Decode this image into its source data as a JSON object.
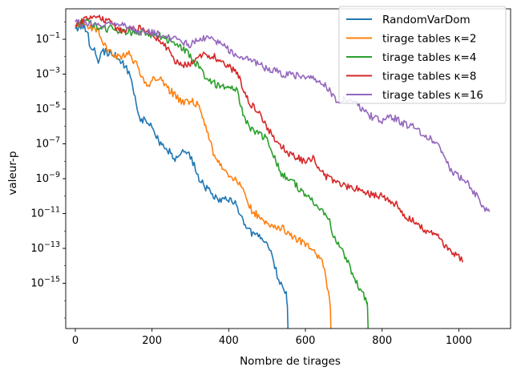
{
  "chart_data": {
    "type": "line",
    "title": "",
    "xlabel": "Nombre de tirages",
    "ylabel": "valeur-p",
    "xlim": [
      -25,
      1135
    ],
    "ylim_log10": [
      -17.6,
      0.75
    ],
    "y_scale": "log",
    "x_ticks": [
      0,
      200,
      400,
      600,
      800,
      1000
    ],
    "x_tick_labels": [
      "0",
      "200",
      "400",
      "600",
      "800",
      "1000"
    ],
    "y_tick_exponents": [
      -15,
      -13,
      -11,
      -9,
      -7,
      -5,
      -3,
      -1
    ],
    "y_tick_labels": [
      {
        "base": "10",
        "exp": "−15"
      },
      {
        "base": "10",
        "exp": "−13"
      },
      {
        "base": "10",
        "exp": "−11"
      },
      {
        "base": "10",
        "exp": "−9"
      },
      {
        "base": "10",
        "exp": "−7"
      },
      {
        "base": "10",
        "exp": "−5"
      },
      {
        "base": "10",
        "exp": "−3"
      },
      {
        "base": "10",
        "exp": "−1"
      }
    ],
    "grid": false,
    "legend_position": "top-right",
    "series": [
      {
        "name": "RandomVarDom",
        "color": "#1f77b4",
        "x": [
          0,
          20,
          30,
          40,
          50,
          60,
          70,
          90,
          110,
          130,
          140,
          150,
          170,
          190,
          200,
          220,
          240,
          260,
          270,
          280,
          290,
          300,
          310,
          320,
          340,
          360,
          380,
          400,
          420,
          440,
          460,
          480,
          500,
          510,
          520,
          530,
          540,
          550,
          553
        ],
        "log10_y": [
          -0.4,
          -0.2,
          -0.5,
          -1.5,
          -1.7,
          -2.3,
          -1.7,
          -1.8,
          -2.0,
          -2.6,
          -2.9,
          -3.8,
          -5.6,
          -5.7,
          -6.0,
          -7.0,
          -7.3,
          -7.9,
          -7.7,
          -7.5,
          -7.5,
          -7.7,
          -8.2,
          -8.9,
          -9.5,
          -10.0,
          -10.2,
          -10.2,
          -10.5,
          -11.5,
          -12.1,
          -12.2,
          -12.8,
          -13.0,
          -14.0,
          -14.8,
          -15.3,
          -15.6,
          -16.3
        ]
      },
      {
        "name": "tirage tables κ=2",
        "color": "#ff7f0e",
        "x": [
          0,
          20,
          40,
          60,
          70,
          80,
          90,
          120,
          140,
          160,
          180,
          190,
          200,
          220,
          240,
          260,
          270,
          280,
          290,
          300,
          320,
          340,
          360,
          380,
          400,
          420,
          440,
          460,
          480,
          500,
          520,
          540,
          560,
          580,
          600,
          610,
          620,
          640,
          650,
          660,
          665
        ],
        "log10_y": [
          -0.3,
          0.0,
          -0.3,
          -0.5,
          -1.0,
          -1.5,
          -1.8,
          -2.0,
          -1.8,
          -2.5,
          -3.5,
          -3.8,
          -3.2,
          -3.3,
          -3.8,
          -4.2,
          -4.5,
          -4.6,
          -4.6,
          -4.5,
          -4.8,
          -6.0,
          -7.5,
          -8.2,
          -8.8,
          -9.0,
          -9.7,
          -10.8,
          -11.2,
          -11.5,
          -11.8,
          -11.8,
          -12.3,
          -12.5,
          -12.8,
          -12.9,
          -13.2,
          -13.5,
          -14.2,
          -15.6,
          -16.4
        ]
      },
      {
        "name": "tirage tables κ=4",
        "color": "#2ca02c",
        "x": [
          0,
          20,
          40,
          60,
          80,
          100,
          120,
          140,
          160,
          180,
          200,
          220,
          240,
          260,
          280,
          300,
          320,
          340,
          360,
          380,
          400,
          420,
          440,
          460,
          480,
          500,
          520,
          540,
          560,
          580,
          600,
          620,
          640,
          660,
          670,
          680,
          700,
          720,
          740,
          760,
          762
        ],
        "log10_y": [
          -0.2,
          0.0,
          -0.1,
          -0.3,
          -0.4,
          -0.4,
          -0.5,
          -0.6,
          -0.6,
          -0.7,
          -0.8,
          -0.8,
          -1.0,
          -1.3,
          -1.5,
          -2.0,
          -2.5,
          -3.2,
          -3.5,
          -3.8,
          -3.7,
          -3.8,
          -5.5,
          -6.2,
          -6.5,
          -6.7,
          -7.8,
          -8.8,
          -9.0,
          -9.5,
          -10.0,
          -10.3,
          -10.8,
          -11.2,
          -12.0,
          -12.5,
          -13.3,
          -14.3,
          -15.2,
          -16.0,
          -16.4
        ]
      },
      {
        "name": "tirage tables κ=8",
        "color": "#d62728",
        "x": [
          0,
          20,
          40,
          60,
          80,
          100,
          120,
          140,
          160,
          180,
          200,
          220,
          240,
          260,
          280,
          300,
          320,
          340,
          360,
          380,
          400,
          420,
          440,
          460,
          480,
          500,
          520,
          540,
          560,
          580,
          600,
          620,
          640,
          660,
          680,
          700,
          720,
          740,
          760,
          780,
          800,
          820,
          840,
          860,
          880,
          900,
          920,
          940,
          960,
          980,
          1000,
          1010
        ],
        "log10_y": [
          -0.2,
          0.1,
          0.2,
          0.2,
          0.1,
          -0.2,
          -0.5,
          -0.4,
          -0.4,
          -0.4,
          -0.7,
          -1.0,
          -1.5,
          -2.2,
          -2.5,
          -2.5,
          -2.0,
          -1.8,
          -2.0,
          -2.2,
          -2.6,
          -2.8,
          -4.0,
          -4.8,
          -5.2,
          -6.0,
          -6.8,
          -7.2,
          -7.6,
          -7.8,
          -8.0,
          -7.8,
          -8.5,
          -9.0,
          -9.2,
          -9.4,
          -9.5,
          -9.6,
          -9.8,
          -10.0,
          -10.0,
          -10.3,
          -10.5,
          -11.2,
          -11.3,
          -11.8,
          -12.0,
          -12.2,
          -12.8,
          -13.2,
          -13.5,
          -13.8
        ]
      },
      {
        "name": "tirage tables κ=16",
        "color": "#9467bd",
        "x": [
          0,
          20,
          40,
          60,
          80,
          100,
          120,
          140,
          160,
          180,
          200,
          220,
          240,
          260,
          280,
          300,
          320,
          340,
          360,
          380,
          400,
          420,
          440,
          460,
          480,
          500,
          520,
          540,
          560,
          580,
          600,
          620,
          640,
          660,
          680,
          700,
          720,
          740,
          760,
          780,
          800,
          820,
          840,
          860,
          880,
          900,
          920,
          940,
          960,
          980,
          1000,
          1020,
          1040,
          1060,
          1080
        ],
        "log10_y": [
          0.0,
          -0.1,
          -0.1,
          -0.2,
          -0.1,
          -0.2,
          -0.2,
          -0.4,
          -0.5,
          -0.6,
          -0.6,
          -0.7,
          -0.9,
          -1.0,
          -1.2,
          -1.3,
          -1.1,
          -0.9,
          -1.0,
          -1.3,
          -1.6,
          -2.0,
          -2.1,
          -2.3,
          -2.4,
          -2.7,
          -2.8,
          -3.0,
          -3.0,
          -3.1,
          -3.2,
          -3.3,
          -3.5,
          -3.8,
          -4.5,
          -4.4,
          -4.6,
          -4.8,
          -5.3,
          -5.5,
          -5.7,
          -5.4,
          -5.6,
          -5.9,
          -5.9,
          -6.4,
          -6.6,
          -6.9,
          -7.6,
          -8.5,
          -8.9,
          -9.2,
          -9.8,
          -10.5,
          -10.9
        ]
      }
    ]
  }
}
